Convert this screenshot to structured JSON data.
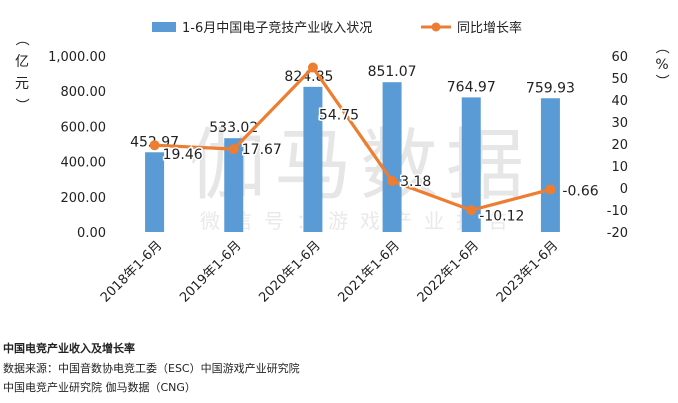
{
  "chart_data": {
    "type": "bar+line",
    "categories": [
      "2018年1-6月",
      "2019年1-6月",
      "2020年1-6月",
      "2021年1-6月",
      "2022年1-6月",
      "2023年1-6月"
    ],
    "series": [
      {
        "name": "1-6月中国电子竞技产业收入状况",
        "kind": "bar",
        "axis": "left",
        "values": [
          452.97,
          533.02,
          824.85,
          851.07,
          764.97,
          759.93
        ],
        "labels": [
          "452.97",
          "533.02",
          "824.85",
          "851.07",
          "764.97",
          "759.93"
        ],
        "color": "#5B9BD5"
      },
      {
        "name": "同比增长率",
        "kind": "line",
        "axis": "right",
        "values": [
          19.46,
          17.67,
          54.75,
          3.18,
          -10.12,
          -0.66
        ],
        "labels": [
          "19.46",
          "17.67",
          "54.75",
          "3.18",
          "-10.12",
          "-0.66"
        ],
        "color": "#ED7D31"
      }
    ],
    "y_left": {
      "label": "（亿元）",
      "range": [
        0,
        1000
      ],
      "ticks": [
        "0.00",
        "200.00",
        "400.00",
        "600.00",
        "800.00",
        "1,000.00"
      ]
    },
    "y_right": {
      "label": "（%）",
      "range": [
        -20,
        60
      ],
      "ticks": [
        "60",
        "50",
        "40",
        "30",
        "20",
        "10",
        "0",
        "-10",
        "-20"
      ]
    },
    "watermark": [
      "伽马数据",
      "微信号：游戏产业报告"
    ]
  },
  "caption": {
    "title": "中国电竞产业收入及增长率",
    "source_line1": "数据来源：中国音数协电竞工委（ESC）中国游戏产业研究院",
    "source_line2": "中国电竞产业研究院  伽马数据（CNG）"
  }
}
